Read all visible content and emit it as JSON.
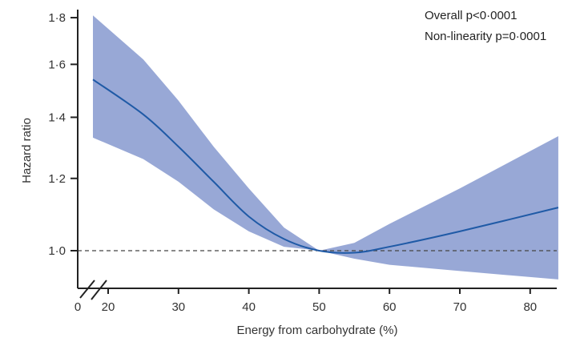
{
  "chart_data": {
    "type": "line",
    "title": "",
    "xlabel": "Energy from carbohydrate (%)",
    "ylabel": "Hazard ratio",
    "y_scale": "log",
    "xlim": [
      0,
      84
    ],
    "ylim": [
      0.9,
      1.82
    ],
    "x_break": "axis break between 0 and 20",
    "x_ticks": [
      {
        "v": 0,
        "label": "0"
      },
      {
        "v": 20,
        "label": "20"
      },
      {
        "v": 30,
        "label": "30"
      },
      {
        "v": 40,
        "label": "40"
      },
      {
        "v": 50,
        "label": "50"
      },
      {
        "v": 60,
        "label": "60"
      },
      {
        "v": 70,
        "label": "70"
      },
      {
        "v": 80,
        "label": "80"
      }
    ],
    "y_ticks": [
      {
        "v": 1.0,
        "label": "1·0"
      },
      {
        "v": 1.2,
        "label": "1·2"
      },
      {
        "v": 1.4,
        "label": "1·4"
      },
      {
        "v": 1.6,
        "label": "1·6"
      },
      {
        "v": 1.8,
        "label": "1·8"
      }
    ],
    "reference_line": 1.0,
    "series": [
      {
        "name": "Hazard ratio",
        "color": "#1f5aa6",
        "x": [
          19,
          25,
          30,
          35,
          40,
          45,
          50,
          55,
          60,
          70,
          84
        ],
        "y": [
          1.54,
          1.41,
          1.3,
          1.19,
          1.09,
          1.03,
          1.0,
          0.995,
          1.01,
          1.05,
          1.115
        ],
        "upper": [
          1.81,
          1.62,
          1.46,
          1.3,
          1.17,
          1.06,
          1.0,
          1.02,
          1.07,
          1.17,
          1.335
        ],
        "lower": [
          1.33,
          1.26,
          1.19,
          1.11,
          1.05,
          1.01,
          1.0,
          0.98,
          0.965,
          0.95,
          0.93
        ],
        "band_color": "#8d9fd2"
      }
    ],
    "annotations": [
      "Overall p<0·0001",
      "Non-linearity p=0·0001"
    ]
  }
}
